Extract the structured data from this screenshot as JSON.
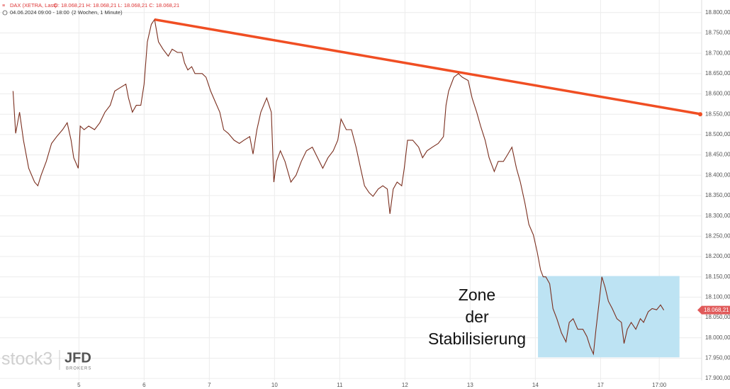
{
  "chart_data": {
    "type": "line",
    "header": {
      "title": "DAX (XETRA, Last)",
      "ohlc": "O: 18.068,21  H: 18.068,21  L: 18.068,21  C: 18.068,21",
      "range": "04.06.2024 09:00 - 18:00",
      "period": "(2 Wochen, 1 Minute)"
    },
    "logos": [
      "stock3",
      "JFD",
      "BROKERS"
    ],
    "color": "#7a2e1e",
    "x": [
      -0.01,
      0.03,
      0.09,
      0.15,
      0.23,
      0.32,
      0.37,
      0.42,
      0.5,
      0.58,
      0.66,
      0.75,
      0.82,
      0.88,
      0.92,
      0.99,
      1.02,
      1.08,
      1.15,
      1.24,
      1.32,
      1.4,
      1.48,
      1.55,
      1.64,
      1.72,
      1.76,
      1.82,
      1.88,
      1.95,
      2.0,
      2.05,
      2.11,
      2.16,
      2.22,
      2.29,
      2.37,
      2.43,
      2.51,
      2.58,
      2.62,
      2.67,
      2.73,
      2.78,
      2.89,
      2.95,
      3.02,
      3.09,
      3.16,
      3.22,
      3.29,
      3.38,
      3.46,
      3.53,
      3.62,
      3.67,
      3.73,
      3.79,
      3.88,
      3.95,
      3.99,
      4.03,
      4.09,
      4.16,
      4.25,
      4.33,
      4.41,
      4.49,
      4.58,
      4.66,
      4.74,
      4.82,
      4.9,
      4.97,
      5.02,
      5.1,
      5.18,
      5.25,
      5.32,
      5.38,
      5.45,
      5.51,
      5.59,
      5.66,
      5.73,
      5.77,
      5.82,
      5.88,
      5.95,
      5.99,
      6.04,
      6.12,
      6.21,
      6.27,
      6.34,
      6.42,
      6.51,
      6.59,
      6.63,
      6.67,
      6.75,
      6.82,
      6.88,
      6.97,
      7.03,
      7.1,
      7.16,
      7.23,
      7.29,
      7.37,
      7.43,
      7.51,
      7.58,
      7.64,
      7.71,
      7.77,
      7.84,
      7.9,
      7.97,
      8.03,
      8.08,
      8.12,
      8.16,
      8.22,
      8.27,
      8.33,
      8.4,
      8.47,
      8.52,
      8.58,
      8.65,
      8.73,
      8.79,
      8.84,
      8.89,
      8.93,
      8.98,
      9.02,
      9.07,
      9.12,
      9.18,
      9.25,
      9.32,
      9.36,
      9.41,
      9.47,
      9.54,
      9.61,
      9.66,
      9.73,
      9.79,
      9.86,
      9.92,
      9.97
    ],
    "values": [
      18607,
      18503,
      18555,
      18486,
      18417,
      18383,
      18374,
      18400,
      18434,
      18478,
      18495,
      18512,
      18529,
      18486,
      18443,
      18417,
      18521,
      18512,
      18521,
      18512,
      18529,
      18555,
      18572,
      18607,
      18616,
      18624,
      18590,
      18555,
      18572,
      18572,
      18624,
      18728,
      18771,
      18783,
      18728,
      18710,
      18693,
      18710,
      18702,
      18702,
      18676,
      18659,
      18667,
      18650,
      18650,
      18641,
      18607,
      18581,
      18555,
      18512,
      18503,
      18486,
      18478,
      18486,
      18495,
      18452,
      18512,
      18555,
      18590,
      18555,
      18383,
      18434,
      18460,
      18434,
      18383,
      18400,
      18434,
      18460,
      18469,
      18443,
      18417,
      18443,
      18460,
      18486,
      18538,
      18512,
      18512,
      18469,
      18417,
      18374,
      18357,
      18348,
      18366,
      18374,
      18366,
      18305,
      18366,
      18383,
      18374,
      18417,
      18486,
      18486,
      18469,
      18443,
      18460,
      18469,
      18478,
      18495,
      18572,
      18607,
      18641,
      18650,
      18641,
      18633,
      18590,
      18555,
      18521,
      18486,
      18443,
      18409,
      18434,
      18434,
      18452,
      18469,
      18417,
      18383,
      18331,
      18279,
      18253,
      18210,
      18167,
      18150,
      18150,
      18133,
      18072,
      18047,
      18012,
      17990,
      18038,
      18047,
      18021,
      18021,
      18003,
      17978,
      17960,
      18021,
      18090,
      18150,
      18124,
      18090,
      18072,
      18047,
      18038,
      17986,
      18021,
      18038,
      18021,
      18047,
      18038,
      18064,
      18072,
      18069,
      18081,
      18068
    ],
    "xlim": [
      -0.21,
      10.55
    ],
    "ylim": [
      17895,
      18831
    ],
    "xticks": [
      {
        "value": 1,
        "label": "5"
      },
      {
        "value": 2,
        "label": "6"
      },
      {
        "value": 3,
        "label": "7"
      },
      {
        "value": 4,
        "label": "10"
      },
      {
        "value": 5,
        "label": "11"
      },
      {
        "value": 6,
        "label": "12"
      },
      {
        "value": 7,
        "label": "13"
      },
      {
        "value": 8,
        "label": "14"
      },
      {
        "value": 9,
        "label": "17"
      },
      {
        "value": 9.9,
        "label": "17:00"
      }
    ],
    "yticks": [
      {
        "value": 17900,
        "label": "17.900,00"
      },
      {
        "value": 17950,
        "label": "17.950,00"
      },
      {
        "value": 18000,
        "label": "18.000,00"
      },
      {
        "value": 18050,
        "label": "18.050,00"
      },
      {
        "value": 18100,
        "label": "18.100,00"
      },
      {
        "value": 18150,
        "label": "18.150,00"
      },
      {
        "value": 18200,
        "label": "18.200,00"
      },
      {
        "value": 18250,
        "label": "18.250,00"
      },
      {
        "value": 18300,
        "label": "18.300,00"
      },
      {
        "value": 18350,
        "label": "18.350,00"
      },
      {
        "value": 18400,
        "label": "18.400,00"
      },
      {
        "value": 18450,
        "label": "18.450,00"
      },
      {
        "value": 18500,
        "label": "18.500,00"
      },
      {
        "value": 18550,
        "label": "18.550,00"
      },
      {
        "value": 18600,
        "label": "18.600,00"
      },
      {
        "value": 18650,
        "label": "18.650,00"
      },
      {
        "value": 18700,
        "label": "18.700,00"
      },
      {
        "value": 18750,
        "label": "18.750,00"
      },
      {
        "value": 18800,
        "label": "18.800,00"
      }
    ],
    "grid": true,
    "current_price": {
      "value": 18068.21,
      "label": "18.068,21"
    },
    "trendline": {
      "x": [
        2.16,
        10.55
      ],
      "values": [
        18783,
        18550
      ],
      "color": "#f04e23"
    },
    "zone": {
      "x": [
        8.04,
        10.21
      ],
      "values": [
        17952,
        18152
      ],
      "color": "#bde3f3",
      "label": [
        "Zone",
        "der",
        "Stabilisierung"
      ]
    }
  }
}
